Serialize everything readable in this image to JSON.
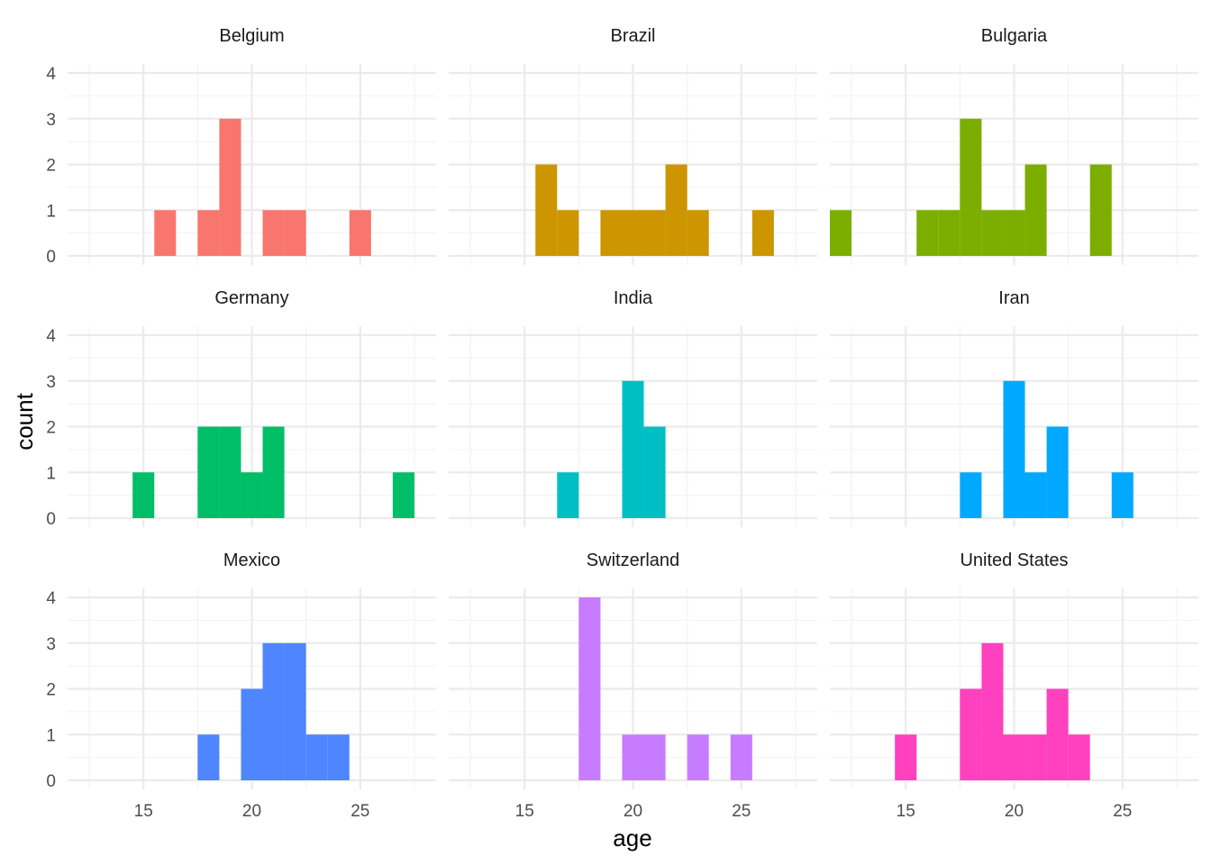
{
  "chart_data": {
    "type": "bar",
    "subtype": "faceted-histogram",
    "xlabel": "age",
    "ylabel": "count",
    "xlim": [
      11.5,
      28.5
    ],
    "ylim": [
      0,
      4
    ],
    "x_ticks": [
      15,
      20,
      25
    ],
    "y_ticks": [
      0,
      1,
      2,
      3,
      4
    ],
    "bin_width": 1,
    "grid": true,
    "legend": "none",
    "facets": [
      {
        "name": "Belgium",
        "color": "#F8766D",
        "bins": [
          {
            "x": 16,
            "count": 1
          },
          {
            "x": 18,
            "count": 1
          },
          {
            "x": 19,
            "count": 3
          },
          {
            "x": 21,
            "count": 1
          },
          {
            "x": 22,
            "count": 1
          },
          {
            "x": 25,
            "count": 1
          }
        ]
      },
      {
        "name": "Brazil",
        "color": "#CD9600",
        "bins": [
          {
            "x": 16,
            "count": 2
          },
          {
            "x": 17,
            "count": 1
          },
          {
            "x": 19,
            "count": 1
          },
          {
            "x": 20,
            "count": 1
          },
          {
            "x": 21,
            "count": 1
          },
          {
            "x": 22,
            "count": 2
          },
          {
            "x": 23,
            "count": 1
          },
          {
            "x": 26,
            "count": 1
          }
        ]
      },
      {
        "name": "Bulgaria",
        "color": "#7CAE00",
        "bins": [
          {
            "x": 12,
            "count": 1
          },
          {
            "x": 16,
            "count": 1
          },
          {
            "x": 17,
            "count": 1
          },
          {
            "x": 18,
            "count": 3
          },
          {
            "x": 19,
            "count": 1
          },
          {
            "x": 20,
            "count": 1
          },
          {
            "x": 21,
            "count": 2
          },
          {
            "x": 24,
            "count": 2
          }
        ]
      },
      {
        "name": "Germany",
        "color": "#00BE67",
        "bins": [
          {
            "x": 15,
            "count": 1
          },
          {
            "x": 18,
            "count": 2
          },
          {
            "x": 19,
            "count": 2
          },
          {
            "x": 20,
            "count": 1
          },
          {
            "x": 21,
            "count": 2
          },
          {
            "x": 27,
            "count": 1
          }
        ]
      },
      {
        "name": "India",
        "color": "#00BFC4",
        "bins": [
          {
            "x": 17,
            "count": 1
          },
          {
            "x": 20,
            "count": 3
          },
          {
            "x": 21,
            "count": 2
          }
        ]
      },
      {
        "name": "Iran",
        "color": "#00A9FF",
        "bins": [
          {
            "x": 18,
            "count": 1
          },
          {
            "x": 20,
            "count": 3
          },
          {
            "x": 21,
            "count": 1
          },
          {
            "x": 22,
            "count": 2
          },
          {
            "x": 25,
            "count": 1
          }
        ]
      },
      {
        "name": "Mexico",
        "color": "#4F85FF",
        "bins": [
          {
            "x": 18,
            "count": 1
          },
          {
            "x": 20,
            "count": 2
          },
          {
            "x": 21,
            "count": 3
          },
          {
            "x": 22,
            "count": 3
          },
          {
            "x": 23,
            "count": 1
          },
          {
            "x": 24,
            "count": 1
          }
        ]
      },
      {
        "name": "Switzerland",
        "color": "#C77CFF",
        "bins": [
          {
            "x": 18,
            "count": 4
          },
          {
            "x": 20,
            "count": 1
          },
          {
            "x": 21,
            "count": 1
          },
          {
            "x": 23,
            "count": 1
          },
          {
            "x": 25,
            "count": 1
          }
        ]
      },
      {
        "name": "United States",
        "color": "#FF40BF",
        "bins": [
          {
            "x": 15,
            "count": 1
          },
          {
            "x": 18,
            "count": 2
          },
          {
            "x": 19,
            "count": 3
          },
          {
            "x": 20,
            "count": 1
          },
          {
            "x": 21,
            "count": 1
          },
          {
            "x": 22,
            "count": 2
          },
          {
            "x": 23,
            "count": 1
          }
        ]
      }
    ]
  }
}
